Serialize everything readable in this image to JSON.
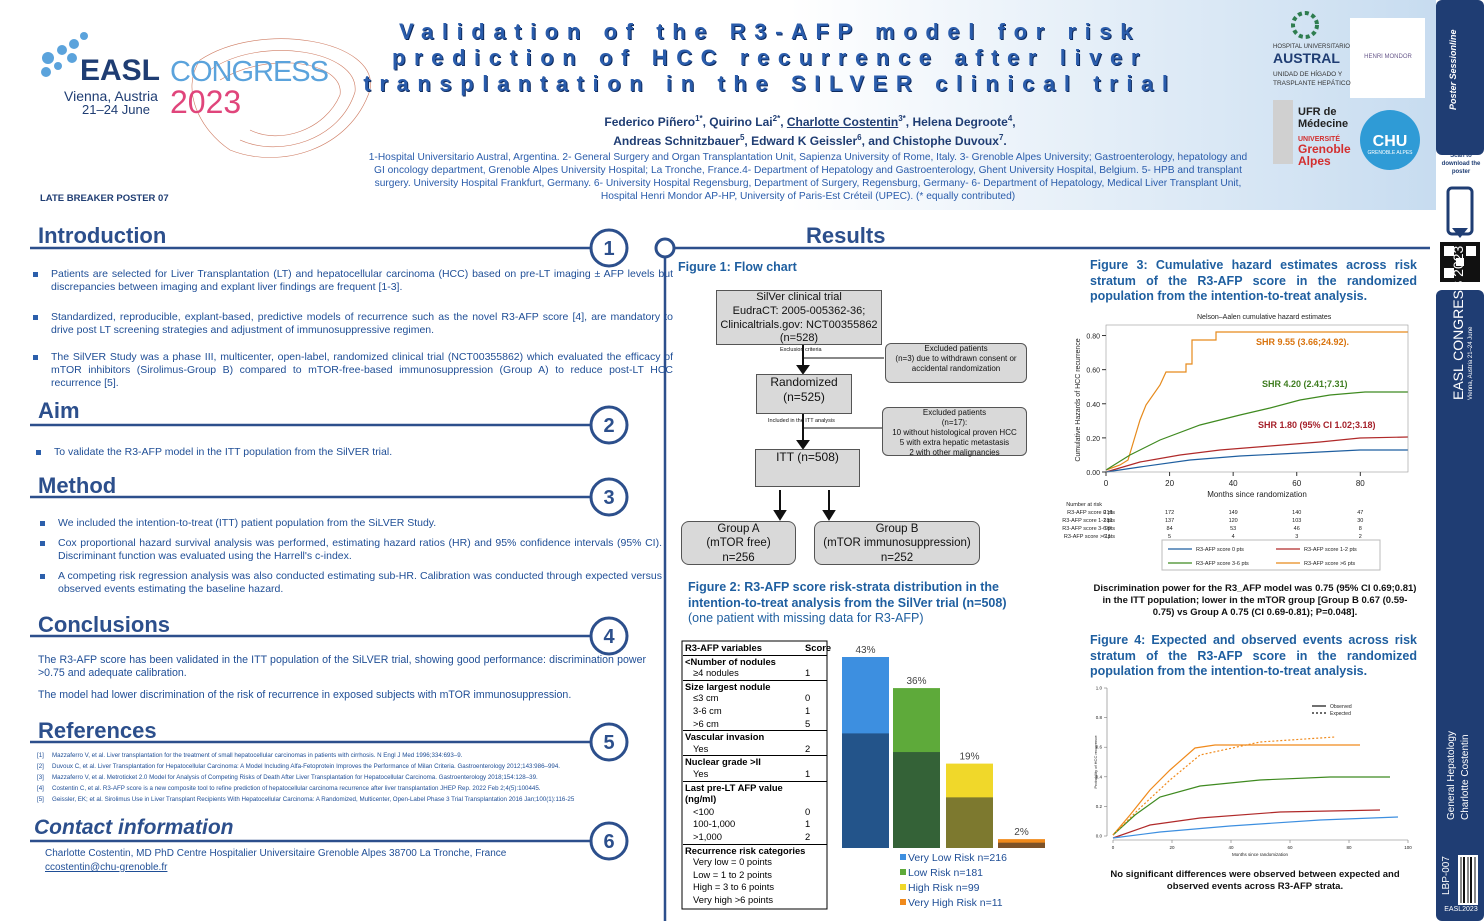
{
  "header": {
    "logo": {
      "easl": "EASL",
      "congress": "CONGRESS",
      "location": "Vienna, Austria",
      "dates": "21–24 June",
      "year": "2023"
    },
    "title_lines": [
      "Validation of the R3-AFP model for risk",
      "prediction of HCC recurrence after liver",
      "transplantation in the SILVER clinical trial"
    ],
    "authors": [
      [
        {
          "text": "Federico Piñero"
        },
        {
          "text": "1*",
          "sup": true
        },
        {
          "text": ", Quirino Lai"
        },
        {
          "text": "2*",
          "sup": true
        },
        {
          "text": ", "
        },
        {
          "text": "Charlotte Costentin",
          "underline": true
        },
        {
          "text": "3*",
          "sup": true
        },
        {
          "text": ", Helena Degroote"
        },
        {
          "text": "4",
          "sup": true
        },
        {
          "text": ","
        }
      ],
      [
        {
          "text": "Andreas Schnitzbauer"
        },
        {
          "text": "5",
          "sup": true
        },
        {
          "text": ", Edward K Geissler"
        },
        {
          "text": "6",
          "sup": true
        },
        {
          "text": ", and Chistophe Duvoux"
        },
        {
          "text": "7",
          "sup": true
        },
        {
          "text": "."
        }
      ]
    ],
    "affiliations": "1-Hospital Universitario Austral, Argentina. 2- General Surgery and Organ Transplantation Unit, Sapienza University of Rome, Italy. 3- Grenoble Alpes University; Gastroenterology, hepatology and GI oncology department, Grenoble Alpes University Hospital; La Tronche, France.4- Department of Hepatology and Gastroenterology, Ghent University Hospital, Belgium. 5- HPB and transplant surgery. University Hospital Frankfurt, Germany. 6- University Hospital Regensburg, Department of Surgery, Regensburg, Germany- 6- Department of Hepatology, Medical Liver Transplant Unit, Hospital Henri Mondor AP-HP, University of Paris-Est Créteil (UPEC). (* equally contributed)",
    "poster_label": "LATE BREAKER POSTER 07",
    "partner_logos": {
      "austral_top": "HOSPITAL UNIVERSITARIO",
      "austral": "AUSTRAL",
      "austral_unit": "UNIDAD DE HÍGADO Y TRASPLANTE HEPÁTICO",
      "mondor": "HENRI MONDOR",
      "ufr": "UFR de Médecine",
      "uga_top": "UNIVERSITÉ",
      "uga": "Grenoble Alpes",
      "chu": "CHU",
      "chu_sub": "GRENOBLE ALPES"
    }
  },
  "sidebar": {
    "brand": "Poster Sessionline",
    "scan": "Scan to download the poster",
    "congress": "EASL CONGRESS 2023",
    "place": "Vienna, Austria 21–24 June",
    "topic": "General Hepatology",
    "author": "Charlotte Costentin",
    "code": "LBP-007",
    "event": "EASL2023"
  },
  "sections": {
    "introduction": {
      "number": "1",
      "heading": "Introduction",
      "bullets": [
        "Patients are selected for Liver Transplantation (LT) and hepatocellular carcinoma (HCC) based on pre-LT imaging ± AFP levels but discrepancies between imaging and explant liver findings are frequent [1-3].",
        "Standardized, reproducible, explant-based, predictive models of recurrence such as the novel R3-AFP score [4], are mandatory to drive post LT screening strategies and adjustment of immunosuppressive regimen.",
        "The SilVER Study was a phase III, multicenter, open-label, randomized clinical trial (NCT00355862) which evaluated the efficacy of mTOR inhibitors (Sirolimus-Group B) compared to mTOR-free-based immunosuppression (Group A) to reduce post-LT HCC recurrence [5]."
      ]
    },
    "aim": {
      "number": "2",
      "heading": "Aim",
      "bullets": [
        "To validate the R3-AFP model in the ITT population from the SilVER trial."
      ]
    },
    "method": {
      "number": "3",
      "heading": "Method",
      "bullets": [
        "We included the intention-to-treat (ITT) patient population from the SiLVER Study.",
        "Cox proportional hazard survival analysis was performed, estimating hazard ratios (HR) and 95% confidence intervals (95% CI). Discriminant function was evaluated using the Harrell's c-index.",
        "A competing risk regression analysis was also conducted estimating sub-HR. Calibration was conducted through expected versus observed events estimating the baseline hazard."
      ]
    },
    "conclusions": {
      "number": "4",
      "heading": "Conclusions",
      "paragraphs": [
        "The R3-AFP score has been validated in the ITT population of the SiLVER trial, showing good performance: discrimination power >0.75 and adequate calibration.",
        "The model had lower discrimination of the risk of recurrence in exposed subjects with mTOR immunosuppression."
      ]
    },
    "references": {
      "number": "5",
      "heading": "References",
      "items": [
        {
          "marker": "[1]",
          "text": "Mazzaferro V, et al. Liver transplantation for the treatment of small hepatocellular carcinomas in patients with cirrhosis. N Engl J Med 1996;334:693–9."
        },
        {
          "marker": "[2]",
          "text": "Duvoux C, et al. Liver Transplantation for Hepatocellular Carcinoma: A Model Including Alfa-Fetoprotein Improves the Performance of Milan Criteria. Gastroenterology 2012;143:986–994."
        },
        {
          "marker": "[3]",
          "text": "Mazzaferro V, et al. Metroticket 2.0 Model for Analysis of Competing Risks of Death After Liver Transplantation for Hepatocellular Carcinoma. Gastroenterology 2018;154:128–39."
        },
        {
          "marker": "[4]",
          "text": "Costentin C, et al. R3-AFP score is a new composite tool to refine prediction of hepatocellular carcinoma recurrence after liver transplantation JHEP Rep. 2022 Feb 2;4(5):100445."
        },
        {
          "marker": "[5]",
          "text": "Geissler, EK; et al. Sirolimus Use in Liver Transplant Recipients With Hepatocellular Carcinoma: A Randomized, Multicenter, Open-Label Phase 3 Trial Transplantation 2016 Jan;100(1):116-25"
        }
      ]
    },
    "contact": {
      "number": "6",
      "heading": "Contact information",
      "lines": [
        "Charlotte Costentin, MD PhD Centre Hospitalier Universitaire Grenoble Alpes 38700 La Tronche, France",
        "ccostentin@chu-grenoble.fr"
      ]
    }
  },
  "results": {
    "heading": "Results",
    "figure1": {
      "title": "Figure 1: Flow chart",
      "trial": [
        "SilVer clinical trial",
        "EudraCT: 2005-005362-36;",
        "Clinicaltrials.gov: NCT00355862",
        "(n=528)"
      ],
      "exclusion_label": "Exclusion criteria",
      "excluded1": [
        "Excluded patients",
        "(n=3) due to withdrawn consent or",
        "accidental randomization"
      ],
      "randomized": [
        "Randomized",
        "(n=525)"
      ],
      "included_label": "Included in the ITT analysis",
      "excluded2": [
        "Excluded patients",
        "(n=17):",
        "10 without histological proven HCC",
        "5 with extra hepatic metastasis",
        "2 with other malignancies"
      ],
      "itt": [
        "ITT (n=508)"
      ],
      "group_a": [
        "Group A",
        "(mTOR free)",
        "n=256"
      ],
      "group_b": [
        "Group B",
        "(mTOR immunosuppression)",
        "n=252"
      ]
    },
    "figure2": {
      "title": "Figure 2: R3-AFP score risk-strata distribution in the intention-to-treat analysis from the SilVer trial (n=508)",
      "subtitle": "(one patient with missing data for R3-AFP)",
      "table": {
        "header": [
          "R3-AFP variables",
          "Score"
        ],
        "rows": [
          {
            "label": "<Number of nodules",
            "bold": true,
            "rule": true
          },
          {
            "label": "≥4 nodules",
            "score": "1"
          },
          {
            "label": "Size largest nodule",
            "bold": true,
            "rule": true
          },
          {
            "label": "≤3 cm",
            "score": "0"
          },
          {
            "label": "3-6 cm",
            "score": "1"
          },
          {
            "label": ">6 cm",
            "score": "5"
          },
          {
            "label": "Vascular invasion",
            "bold": true,
            "rule": true
          },
          {
            "label": "Yes",
            "score": "2"
          },
          {
            "label": "Nuclear grade >II",
            "bold": true,
            "rule": true
          },
          {
            "label": "Yes",
            "score": "1"
          },
          {
            "label": "Last pre-LT AFP value",
            "bold": true,
            "rule": true
          },
          {
            "label": "(ng/ml)",
            "bold": true
          },
          {
            "label": "<100",
            "score": "0"
          },
          {
            "label": "100-1,000",
            "score": "1"
          },
          {
            "label": ">1,000",
            "score": "2"
          },
          {
            "label": "Recurrence risk categories",
            "bold": true,
            "rule": true
          },
          {
            "label": "Very low = 0 points"
          },
          {
            "label": "Low = 1 to 2 points"
          },
          {
            "label": "High = 3 to 6 points"
          },
          {
            "label": "Very high >6 points"
          }
        ]
      },
      "chart": {
        "type": "bar",
        "categories": [
          "Very Low Risk n=216",
          "Low Risk n=181",
          "High Risk n=99",
          "Very High Risk n=11"
        ],
        "values": [
          43,
          36,
          19,
          2
        ],
        "value_labels": [
          "43%",
          "36%",
          "19%",
          "2%"
        ],
        "colors": [
          "#3d8fe0",
          "#5eaa3a",
          "#f0d82a",
          "#f08a1c"
        ]
      }
    },
    "figure3": {
      "title": "Figure 3: Cumulative hazard estimates across risk stratum of the R3-AFP score in the randomized population from the intention-to-treat analysis.",
      "chart_title": "Nelson–Aalen cumulative hazard estimates",
      "y_label": "Cumulative Hazards of HCC recurrence",
      "x_label": "Months since randomization",
      "xlim": [
        0,
        95
      ],
      "xticks": [
        0,
        20,
        40,
        60,
        80
      ],
      "ylim": [
        0,
        0.85
      ],
      "yticks": [
        {
          "value": 0,
          "label": "0.00"
        },
        {
          "value": 0.2,
          "label": "0.20"
        },
        {
          "value": 0.4,
          "label": "0.40"
        },
        {
          "value": 0.6,
          "label": "0.60"
        },
        {
          "value": 0.8,
          "label": "0.80"
        }
      ],
      "annotations": [
        {
          "text": "SHR 9.55 (3.66;24.92).",
          "color": "#d9730d"
        },
        {
          "text": "SHR 4.20 (2.41;7.31)",
          "color": "#3f7d20"
        },
        {
          "text": "SHR 1.80 (95% CI 1.02;3.18)",
          "color": "#a5202a"
        }
      ],
      "risk_table": {
        "title": "Number at risk",
        "rows": [
          {
            "label": "R3-AFP score 0 pts",
            "values": [
              216,
              172,
              149,
              140,
              47
            ]
          },
          {
            "label": "R3-AFP score 1-2 pts",
            "values": [
              181,
              137,
              120,
              103,
              30
            ]
          },
          {
            "label": "R3-AFP score 3-6 pts",
            "values": [
              99,
              84,
              53,
              46,
              8
            ]
          },
          {
            "label": "R3-AFP score >6 pts",
            "values": [
              11,
              5,
              4,
              3,
              2
            ]
          }
        ]
      },
      "legend": [
        {
          "name": "R3-AFP score 0 pts",
          "color": "#1f5fa0"
        },
        {
          "name": "R3-AFP score 1-2 pts",
          "color": "#b02a2a"
        },
        {
          "name": "R3-AFP score 3-6 pts",
          "color": "#3f8a20"
        },
        {
          "name": "R3-AFP score >6 pts",
          "color": "#e68a1c"
        }
      ],
      "caption": "Discrimination power for the R3_AFP model was 0.75 (95% CI 0.69;0.81) in the ITT population; lower in the mTOR group [Group B 0.67 (0.59-0.75) vs Group A 0.75 (CI 0.69-0.81); P=0.048]."
    },
    "figure4": {
      "title": "Figure 4: Expected and observed events across risk stratum of the R3-AFP score in the randomized population from the intention-to-treat analysis.",
      "xlim": [
        0,
        100
      ],
      "xticks": [
        0,
        20,
        40,
        60,
        80,
        100
      ],
      "ylim": [
        0,
        1
      ],
      "yticks": [
        {
          "value": 0,
          "label": "0.0"
        },
        {
          "value": 0.2,
          "label": "0.2"
        },
        {
          "value": 0.4,
          "label": "0.4"
        },
        {
          "value": 0.6,
          "label": "0.6"
        },
        {
          "value": 0.8,
          "label": "0.8"
        },
        {
          "value": 1,
          "label": "1.0"
        }
      ],
      "legend": [
        "Observed",
        "Expected"
      ],
      "x_label": "Months since randomization",
      "y_label": "Probability of HCC recurrence",
      "caption": "No significant differences were observed between expected and observed events across R3-AFP strata."
    }
  }
}
